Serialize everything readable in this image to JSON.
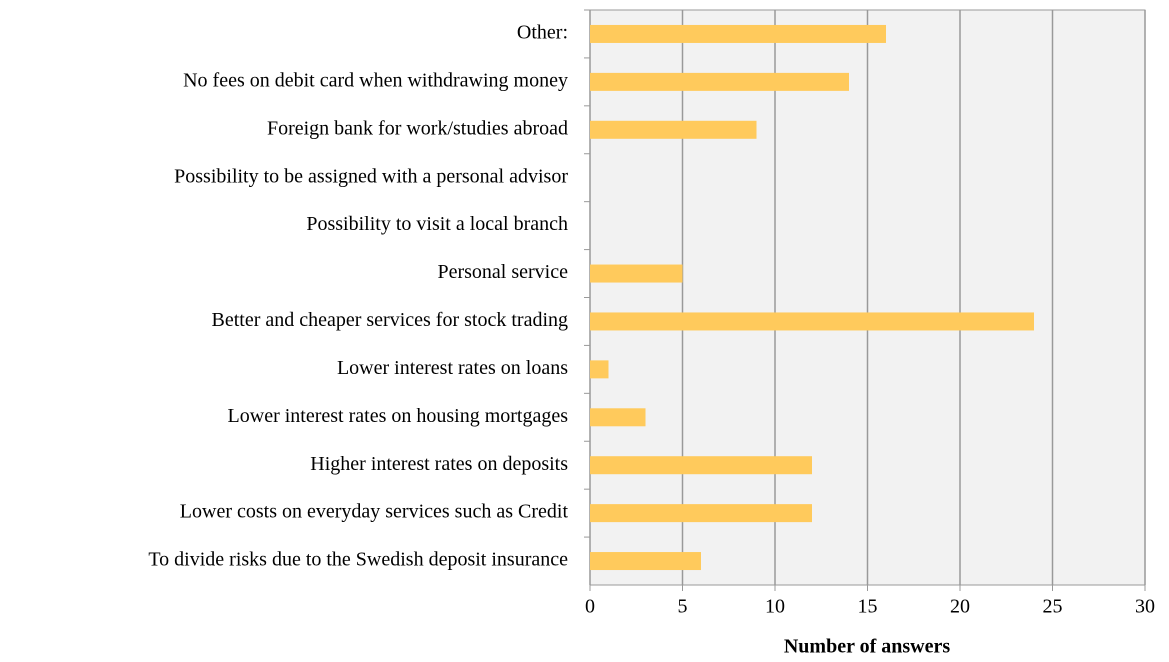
{
  "chart_data": {
    "type": "bar",
    "orientation": "horizontal",
    "x_label": "Number of answers",
    "categories": [
      "Other:",
      "No fees on debit card when withdrawing money",
      "Foreign bank for work/studies abroad",
      "Possibility to be assigned with a personal advisor",
      "Possibility to visit a local branch",
      "Personal service",
      "Better and cheaper services for stock trading",
      "Lower interest rates on loans",
      "Lower interest rates on housing mortgages",
      "Higher interest rates on deposits",
      "Lower costs on everyday services such as Credit",
      "To divide risks due to the Swedish deposit insurance"
    ],
    "values": [
      16,
      14,
      9,
      0,
      0,
      5,
      24,
      1,
      3,
      12,
      12,
      6
    ],
    "color": "#ffca5c",
    "xlim": [
      0,
      30
    ],
    "xticks": [
      0,
      5,
      10,
      15,
      20,
      25,
      30
    ],
    "grid": true
  }
}
